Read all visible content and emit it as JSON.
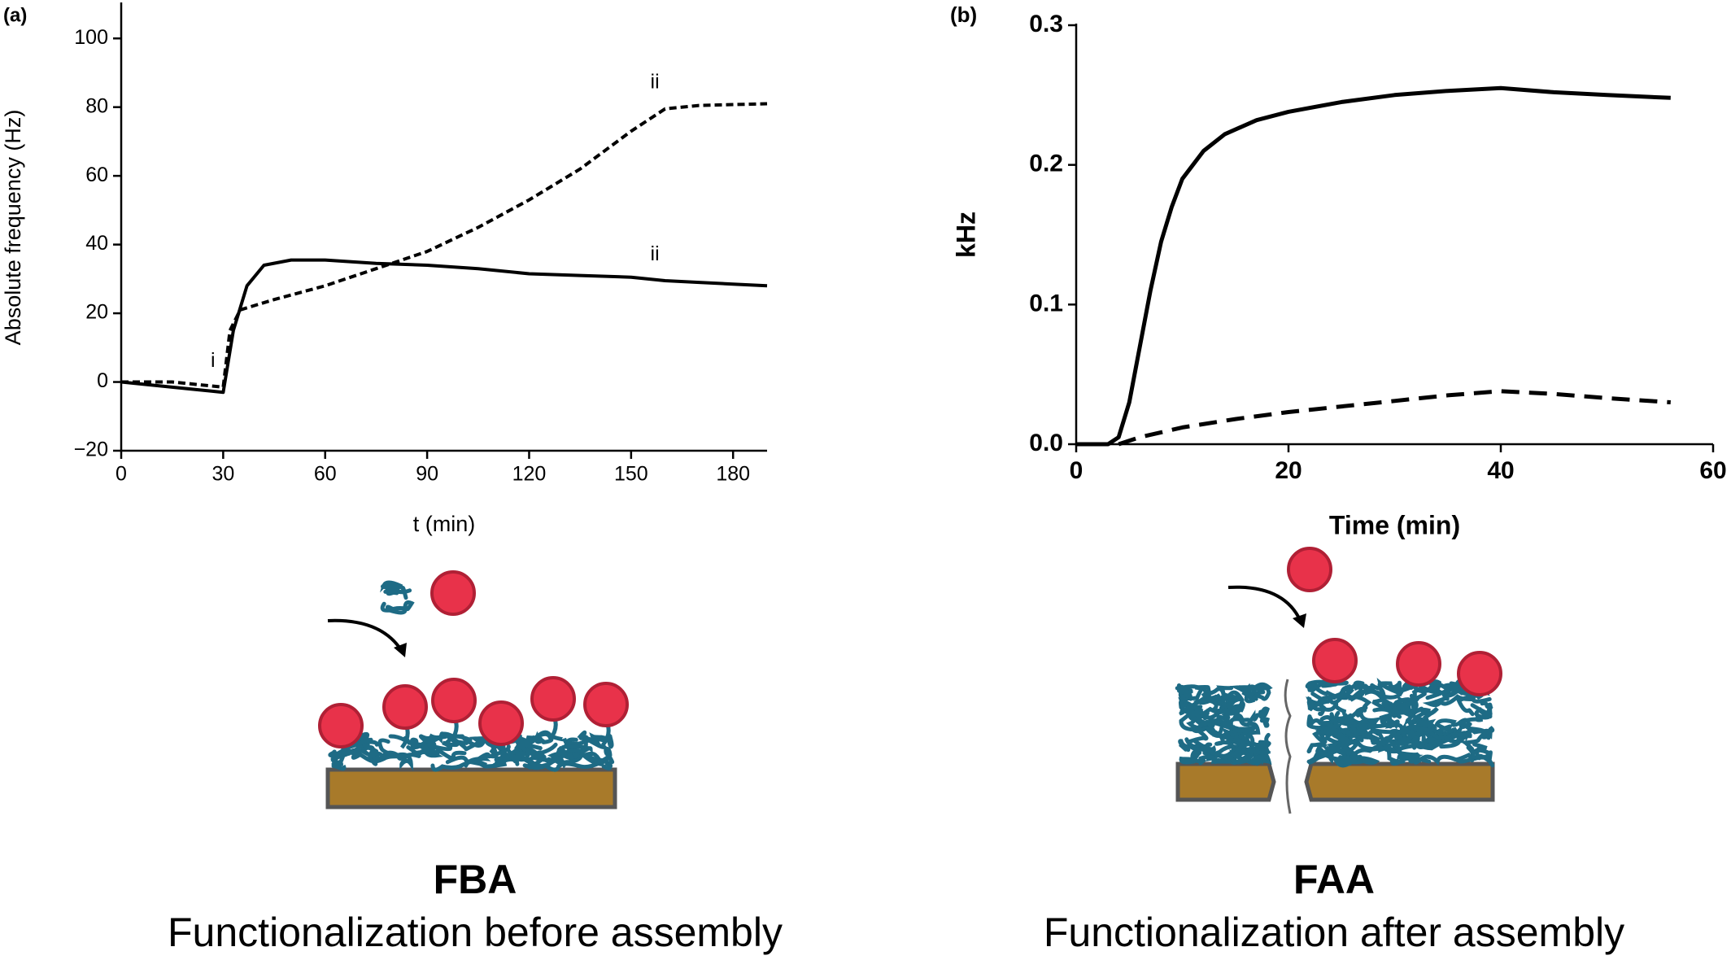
{
  "chart_data": [
    {
      "type": "line",
      "xlabel": "t (min)",
      "ylabel": "Absolute frequency (Hz)",
      "xlim": [
        0,
        190
      ],
      "xticks": [
        0,
        30,
        60,
        90,
        120,
        150,
        180
      ],
      "ylim": [
        -20,
        110
      ],
      "yticks": [
        {
          "value": -20,
          "label": "−20"
        },
        0,
        20,
        40,
        60,
        80,
        100
      ],
      "series": [
        {
          "color": "#000000",
          "linestyle": "solid",
          "x": [
            0,
            10,
            20,
            30,
            33,
            37,
            42,
            50,
            60,
            75,
            90,
            105,
            120,
            135,
            150,
            160,
            170,
            180,
            190
          ],
          "values": [
            0,
            -1,
            -2,
            -3,
            15,
            28,
            34,
            35.5,
            35.5,
            34.5,
            34,
            33,
            31.5,
            31,
            30.5,
            29.5,
            29,
            28.5,
            28
          ]
        },
        {
          "color": "#000000",
          "linestyle": "dashed",
          "x": [
            0,
            15,
            30,
            32,
            35,
            45,
            60,
            75,
            90,
            105,
            120,
            135,
            150,
            160,
            170,
            190
          ],
          "values": [
            0,
            0,
            -1.5,
            15,
            21,
            24,
            28,
            33,
            38,
            45,
            53,
            62,
            73,
            79.5,
            80.5,
            81
          ]
        }
      ],
      "annotations": [
        {
          "text": "i",
          "x": 27,
          "y": 6
        },
        {
          "text": "ii",
          "x": 157,
          "y": 87
        },
        {
          "text": "ii",
          "x": 157,
          "y": 37
        }
      ]
    },
    {
      "type": "line",
      "xlabel": "Time (min)",
      "ylabel": "kHz",
      "xlim": [
        0,
        60
      ],
      "xticks": [
        0,
        20,
        40,
        60
      ],
      "ylim": [
        0,
        0.3
      ],
      "yticks": [
        {
          "value": 0,
          "label": "0.0"
        },
        0.1,
        0.2,
        0.3
      ],
      "series": [
        {
          "color": "#000000",
          "linestyle": "solid",
          "x": [
            0,
            3,
            4,
            5,
            6,
            7,
            8,
            9,
            10,
            12,
            14,
            17,
            20,
            25,
            30,
            35,
            40,
            45,
            50,
            56
          ],
          "values": [
            0,
            0,
            0.005,
            0.03,
            0.07,
            0.11,
            0.145,
            0.17,
            0.19,
            0.21,
            0.222,
            0.232,
            0.238,
            0.245,
            0.25,
            0.253,
            0.255,
            0.252,
            0.25,
            0.248
          ]
        },
        {
          "color": "#000000",
          "linestyle": "dashed",
          "x": [
            4,
            6,
            10,
            15,
            20,
            25,
            30,
            35,
            40,
            45,
            50,
            56
          ],
          "values": [
            0,
            0.005,
            0.012,
            0.018,
            0.023,
            0.027,
            0.031,
            0.035,
            0.038,
            0.036,
            0.033,
            0.03
          ]
        }
      ]
    }
  ],
  "panels": [
    {
      "label": "(a)",
      "acronym": "FBA",
      "caption": "Functionalization before assembly"
    },
    {
      "label": "(b)",
      "acronym": "FAA",
      "caption": "Functionalization after assembly"
    }
  ]
}
